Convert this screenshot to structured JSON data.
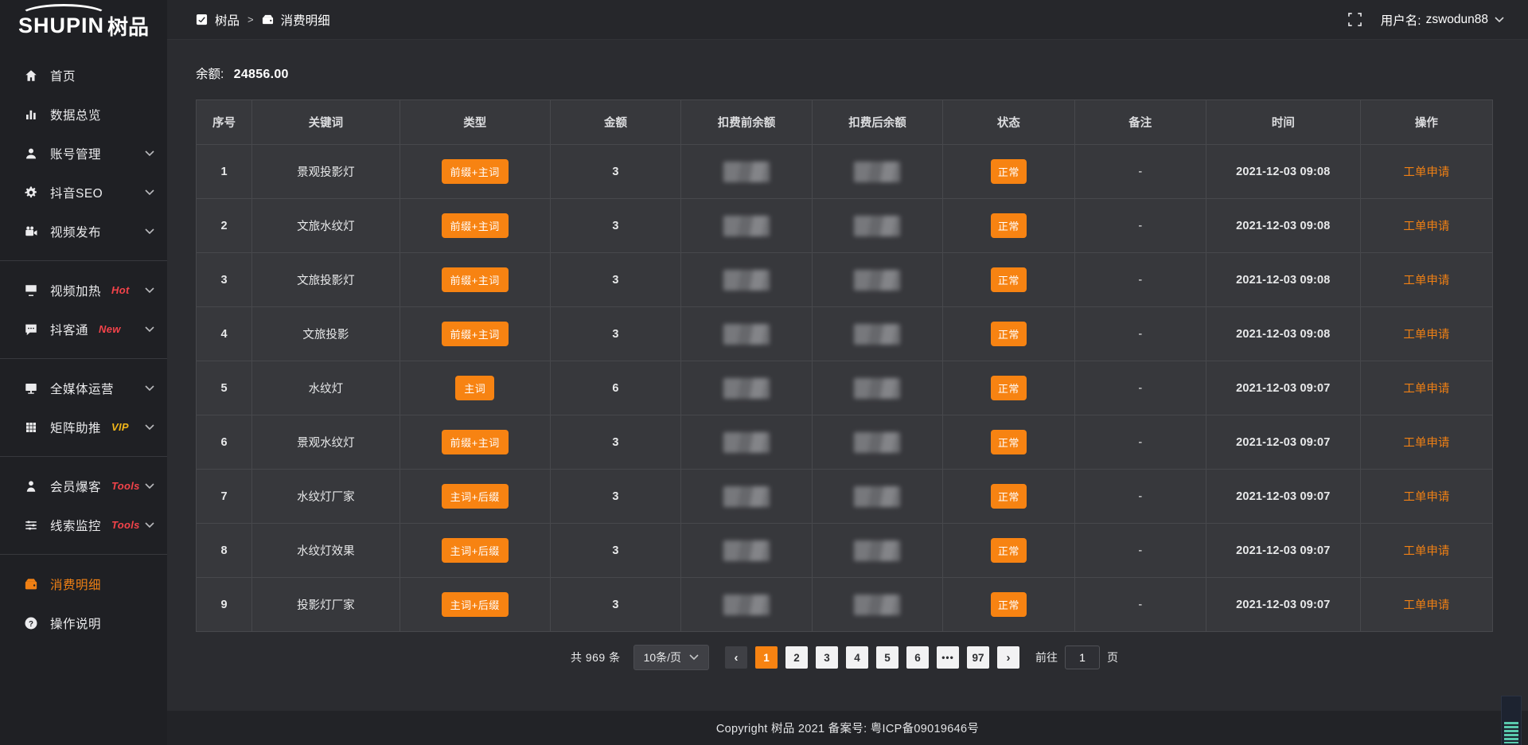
{
  "brand": {
    "logo_en": "SHUPIN",
    "logo_cn": "树品"
  },
  "topbar": {
    "breadcrumb": [
      {
        "label": "树品",
        "icon": "app-icon"
      },
      {
        "label": "消费明细",
        "icon": "wallet-icon"
      }
    ],
    "separator": ">",
    "username_label": "用户名:",
    "username": "zswodun88"
  },
  "sidebar": {
    "items": [
      {
        "label": "首页",
        "icon": "home-icon"
      },
      {
        "label": "数据总览",
        "icon": "chart-icon"
      },
      {
        "label": "账号管理",
        "icon": "user-icon",
        "expandable": true
      },
      {
        "label": "抖音SEO",
        "icon": "gear-icon",
        "expandable": true
      },
      {
        "label": "视频发布",
        "icon": "video-camera-icon",
        "expandable": true,
        "divider_after": true
      },
      {
        "label": "视频加热",
        "icon": "display-icon",
        "tag": "Hot",
        "tag_color": "#f3434a",
        "expandable": true
      },
      {
        "label": "抖客通",
        "icon": "chat-bubble-icon",
        "tag": "New",
        "tag_color": "#f3434a",
        "expandable": true,
        "divider_after": true
      },
      {
        "label": "全媒体运营",
        "icon": "monitor-icon",
        "expandable": true
      },
      {
        "label": "矩阵助推",
        "icon": "grid-icon",
        "tag": "VIP",
        "tag_color": "#f0b519",
        "expandable": true,
        "divider_after": true
      },
      {
        "label": "会员爆客",
        "icon": "member-icon",
        "tag": "Tools",
        "tag_color": "#f3434a",
        "expandable": true
      },
      {
        "label": "线索监控",
        "icon": "sliders-icon",
        "tag": "Tools",
        "tag_color": "#f3434a",
        "expandable": true,
        "divider_after": true
      },
      {
        "label": "消费明细",
        "icon": "wallet-icon",
        "active": true
      },
      {
        "label": "操作说明",
        "icon": "question-icon"
      }
    ]
  },
  "balance": {
    "label": "余额:",
    "value": "24856.00"
  },
  "table": {
    "headers": [
      "序号",
      "关键词",
      "类型",
      "金额",
      "扣费前余额",
      "扣费后余额",
      "状态",
      "备注",
      "时间",
      "操作"
    ],
    "redacted_columns": [
      "扣费前余额",
      "扣费后余额"
    ],
    "rows": [
      {
        "index": "1",
        "keyword": "景观投影灯",
        "type": "前缀+主词",
        "amount": "3",
        "status": "正常",
        "remark": "-",
        "time": "2021-12-03 09:08",
        "action": "工单申请"
      },
      {
        "index": "2",
        "keyword": "文旅水纹灯",
        "type": "前缀+主词",
        "amount": "3",
        "status": "正常",
        "remark": "-",
        "time": "2021-12-03 09:08",
        "action": "工单申请"
      },
      {
        "index": "3",
        "keyword": "文旅投影灯",
        "type": "前缀+主词",
        "amount": "3",
        "status": "正常",
        "remark": "-",
        "time": "2021-12-03 09:08",
        "action": "工单申请"
      },
      {
        "index": "4",
        "keyword": "文旅投影",
        "type": "前缀+主词",
        "amount": "3",
        "status": "正常",
        "remark": "-",
        "time": "2021-12-03 09:08",
        "action": "工单申请"
      },
      {
        "index": "5",
        "keyword": "水纹灯",
        "type": "主词",
        "amount": "6",
        "status": "正常",
        "remark": "-",
        "time": "2021-12-03 09:07",
        "action": "工单申请"
      },
      {
        "index": "6",
        "keyword": "景观水纹灯",
        "type": "前缀+主词",
        "amount": "3",
        "status": "正常",
        "remark": "-",
        "time": "2021-12-03 09:07",
        "action": "工单申请"
      },
      {
        "index": "7",
        "keyword": "水纹灯厂家",
        "type": "主词+后缀",
        "amount": "3",
        "status": "正常",
        "remark": "-",
        "time": "2021-12-03 09:07",
        "action": "工单申请"
      },
      {
        "index": "8",
        "keyword": "水纹灯效果",
        "type": "主词+后缀",
        "amount": "3",
        "status": "正常",
        "remark": "-",
        "time": "2021-12-03 09:07",
        "action": "工单申请"
      },
      {
        "index": "9",
        "keyword": "投影灯厂家",
        "type": "主词+后缀",
        "amount": "3",
        "status": "正常",
        "remark": "-",
        "time": "2021-12-03 09:07",
        "action": "工单申请"
      }
    ]
  },
  "pagination": {
    "total_label": "共 969 条",
    "page_size": "10条/页",
    "prev_label": "‹",
    "next_label": "›",
    "pages": [
      "1",
      "2",
      "3",
      "4",
      "5",
      "6",
      "•••",
      "97"
    ],
    "active_page": "1",
    "goto_label": "前往",
    "goto_value": "1",
    "page_label": "页"
  },
  "footer": {
    "copyright": "Copyright 树品 2021 备案号: 粤ICP备09019646号"
  },
  "colors": {
    "accent_orange": "#f78312",
    "tag_red": "#f3434a",
    "tag_gold": "#f0b519",
    "sidebar_bg": "#1f2024",
    "cell_bg": "#37383c"
  }
}
